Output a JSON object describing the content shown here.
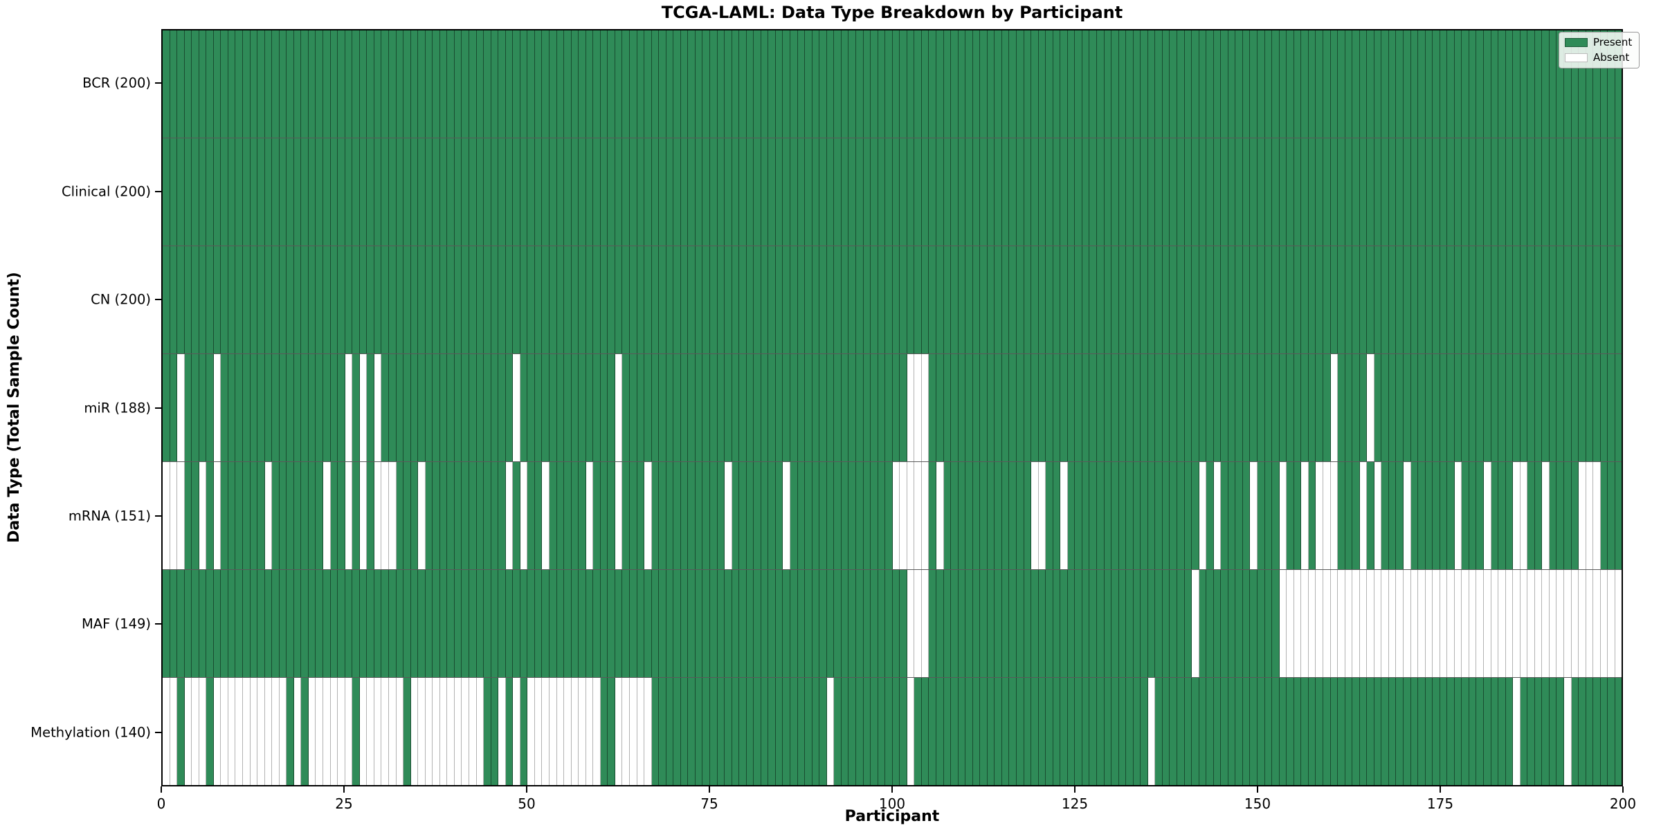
{
  "title": "TCGA-LAML: Data Type Breakdown by Participant",
  "x_axis": {
    "label": "Participant",
    "min": 0,
    "max": 200,
    "ticks": [
      0,
      25,
      50,
      75,
      100,
      125,
      150,
      175,
      200
    ]
  },
  "y_axis": {
    "label": "Data Type (Total Sample Count)"
  },
  "legend": {
    "items": [
      {
        "label": "Present",
        "color": "#2f8b58"
      },
      {
        "label": "Absent",
        "color": "#ffffff"
      }
    ]
  },
  "colors": {
    "present": "#2f8b58",
    "absent": "#ffffff",
    "grid_on_present": "rgba(0,0,0,0.45)",
    "grid_on_absent": "rgba(0,0,0,0.30)"
  },
  "chart_data": {
    "type": "heatmap",
    "title": "TCGA-LAML: Data Type Breakdown by Participant",
    "xlabel": "Participant",
    "ylabel": "Data Type (Total Sample Count)",
    "n_participants": 200,
    "states": [
      "Present",
      "Absent"
    ],
    "rows": [
      {
        "label": "BCR (200)",
        "data_type": "BCR",
        "total_samples": 200,
        "absent_participants": []
      },
      {
        "label": "Clinical (200)",
        "data_type": "Clinical",
        "total_samples": 200,
        "absent_participants": []
      },
      {
        "label": "CN (200)",
        "data_type": "CN",
        "total_samples": 200,
        "absent_participants": []
      },
      {
        "label": "miR (188)",
        "data_type": "miR",
        "total_samples": 188,
        "absent_participants": [
          2,
          7,
          25,
          27,
          29,
          48,
          62,
          102,
          103,
          104,
          160,
          165
        ]
      },
      {
        "label": "mRNA (151)",
        "data_type": "mRNA",
        "total_samples": 151,
        "absent_participants": [
          0,
          1,
          2,
          5,
          7,
          14,
          22,
          25,
          27,
          29,
          30,
          31,
          35,
          47,
          49,
          52,
          58,
          62,
          66,
          77,
          85,
          100,
          101,
          102,
          103,
          104,
          106,
          119,
          120,
          123,
          142,
          144,
          149,
          153,
          156,
          158,
          159,
          160,
          164,
          166,
          170,
          177,
          181,
          185,
          186,
          189,
          194,
          195,
          196
        ]
      },
      {
        "label": "MAF (149)",
        "data_type": "MAF",
        "total_samples": 149,
        "absent_participants": [
          102,
          103,
          104,
          141,
          153,
          154,
          155,
          156,
          157,
          158,
          159,
          160,
          161,
          162,
          163,
          164,
          165,
          166,
          167,
          168,
          169,
          170,
          171,
          172,
          173,
          174,
          175,
          176,
          177,
          178,
          179,
          180,
          181,
          182,
          183,
          184,
          185,
          186,
          187,
          188,
          189,
          190,
          191,
          192,
          193,
          194,
          195,
          196,
          197,
          198,
          199
        ]
      },
      {
        "label": "Methylation (140)",
        "data_type": "Methylation",
        "total_samples": 140,
        "absent_participants": [
          0,
          1,
          3,
          4,
          5,
          7,
          8,
          9,
          10,
          11,
          12,
          13,
          14,
          15,
          16,
          18,
          20,
          21,
          22,
          23,
          24,
          25,
          27,
          28,
          29,
          30,
          31,
          32,
          34,
          35,
          36,
          37,
          38,
          39,
          40,
          41,
          42,
          43,
          46,
          48,
          50,
          51,
          52,
          53,
          54,
          55,
          56,
          57,
          58,
          59,
          62,
          63,
          64,
          65,
          66,
          91,
          102,
          135,
          185,
          192
        ]
      }
    ]
  }
}
